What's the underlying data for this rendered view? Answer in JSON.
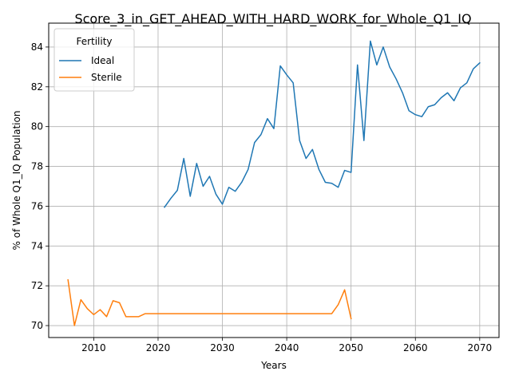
{
  "chart_data": {
    "type": "line",
    "title": "Score_3_in_GET_AHEAD_WITH_HARD_WORK_for_Whole_Q1_IQ",
    "xlabel": "Years",
    "ylabel": "% of Whole Q1_IQ Population",
    "xlim": [
      2003,
      2073
    ],
    "ylim": [
      69.4,
      85.2
    ],
    "xticks": [
      2010,
      2020,
      2030,
      2040,
      2050,
      2060,
      2070
    ],
    "yticks": [
      70,
      72,
      74,
      76,
      78,
      80,
      82,
      84
    ],
    "grid": true,
    "legend": {
      "title": "Fertility",
      "position": "top-left"
    },
    "series": [
      {
        "name": "Ideal",
        "color": "#1f77b4",
        "x": [
          2021,
          2022,
          2023,
          2024,
          2025,
          2026,
          2027,
          2028,
          2029,
          2030,
          2031,
          2032,
          2033,
          2034,
          2035,
          2036,
          2037,
          2038,
          2039,
          2040,
          2041,
          2042,
          2043,
          2044,
          2045,
          2046,
          2047,
          2048,
          2049,
          2050,
          2051,
          2052,
          2053,
          2054,
          2055,
          2056,
          2057,
          2058,
          2059,
          2060,
          2061,
          2062,
          2063,
          2064,
          2065,
          2066,
          2067,
          2068,
          2069,
          2070
        ],
        "y": [
          75.95,
          76.4,
          76.8,
          78.4,
          76.5,
          78.15,
          77.0,
          77.5,
          76.6,
          76.1,
          76.95,
          76.75,
          77.2,
          77.85,
          79.2,
          79.6,
          80.4,
          79.9,
          83.05,
          82.6,
          82.2,
          79.3,
          78.4,
          78.85,
          77.85,
          77.2,
          77.15,
          76.95,
          77.8,
          77.7,
          83.1,
          79.3,
          84.3,
          83.1,
          84.0,
          83.0,
          82.4,
          81.7,
          80.8,
          80.6,
          80.5,
          81.0,
          81.1,
          81.45,
          81.7,
          81.3,
          81.95,
          82.2,
          82.9,
          83.2
        ]
      },
      {
        "name": "Sterile",
        "color": "#ff7f0e",
        "x": [
          2006,
          2007,
          2008,
          2009,
          2010,
          2011,
          2012,
          2013,
          2014,
          2015,
          2016,
          2017,
          2018,
          2019,
          2020,
          2021,
          2022,
          2023,
          2024,
          2025,
          2026,
          2027,
          2028,
          2029,
          2030,
          2031,
          2032,
          2033,
          2034,
          2035,
          2036,
          2037,
          2038,
          2039,
          2040,
          2041,
          2042,
          2043,
          2044,
          2045,
          2046,
          2047,
          2048,
          2049,
          2050
        ],
        "y": [
          72.3,
          70.0,
          71.3,
          70.85,
          70.55,
          70.8,
          70.45,
          71.25,
          71.15,
          70.45,
          70.45,
          70.45,
          70.6,
          70.6,
          70.6,
          70.6,
          70.6,
          70.6,
          70.6,
          70.6,
          70.6,
          70.6,
          70.6,
          70.6,
          70.6,
          70.6,
          70.6,
          70.6,
          70.6,
          70.6,
          70.6,
          70.6,
          70.6,
          70.6,
          70.6,
          70.6,
          70.6,
          70.6,
          70.6,
          70.6,
          70.6,
          70.6,
          71.05,
          71.8,
          70.35
        ]
      }
    ]
  }
}
